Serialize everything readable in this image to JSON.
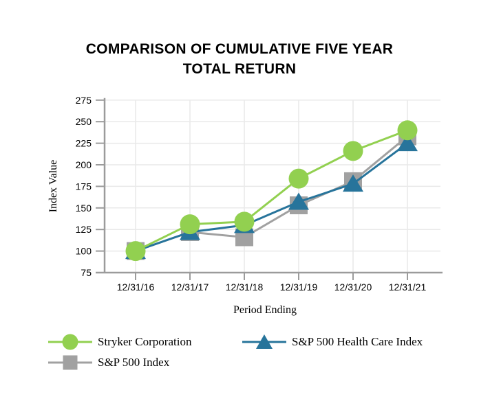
{
  "page": {
    "background": "#FFFFFF"
  },
  "title_lines": [
    "COMPARISON OF CUMULATIVE FIVE YEAR",
    "TOTAL RETURN"
  ],
  "chart_data": {
    "type": "line",
    "title": "COMPARISON OF CUMULATIVE FIVE YEAR TOTAL RETURN",
    "xlabel": "Period Ending",
    "ylabel": "Index Value",
    "categories": [
      "12/31/16",
      "12/31/17",
      "12/31/18",
      "12/31/19",
      "12/31/20",
      "12/31/21"
    ],
    "series": [
      {
        "name": "Stryker Corporation",
        "marker": "circle",
        "color": "#92D050",
        "values": [
          100,
          131,
          134,
          184,
          216,
          240
        ]
      },
      {
        "name": "S&P 500 Index",
        "marker": "square",
        "color": "#A1A1A1",
        "values": [
          100,
          122,
          116,
          153,
          181,
          233
        ]
      },
      {
        "name": "S&P 500 Health Care Index",
        "marker": "triangle",
        "color": "#27749B",
        "values": [
          100,
          122,
          130,
          157,
          178,
          225
        ]
      }
    ],
    "ylim": [
      75,
      275
    ],
    "yticks": [
      75,
      100,
      125,
      150,
      175,
      200,
      225,
      250,
      275
    ],
    "grid": true,
    "legend_position": "bottom",
    "legend_order": [
      0,
      2,
      1
    ],
    "draw_order": [
      1,
      2,
      0
    ],
    "colors": {
      "grid": "#E9E9E9",
      "axis": "#9B9B9B",
      "text": "#000000"
    }
  }
}
